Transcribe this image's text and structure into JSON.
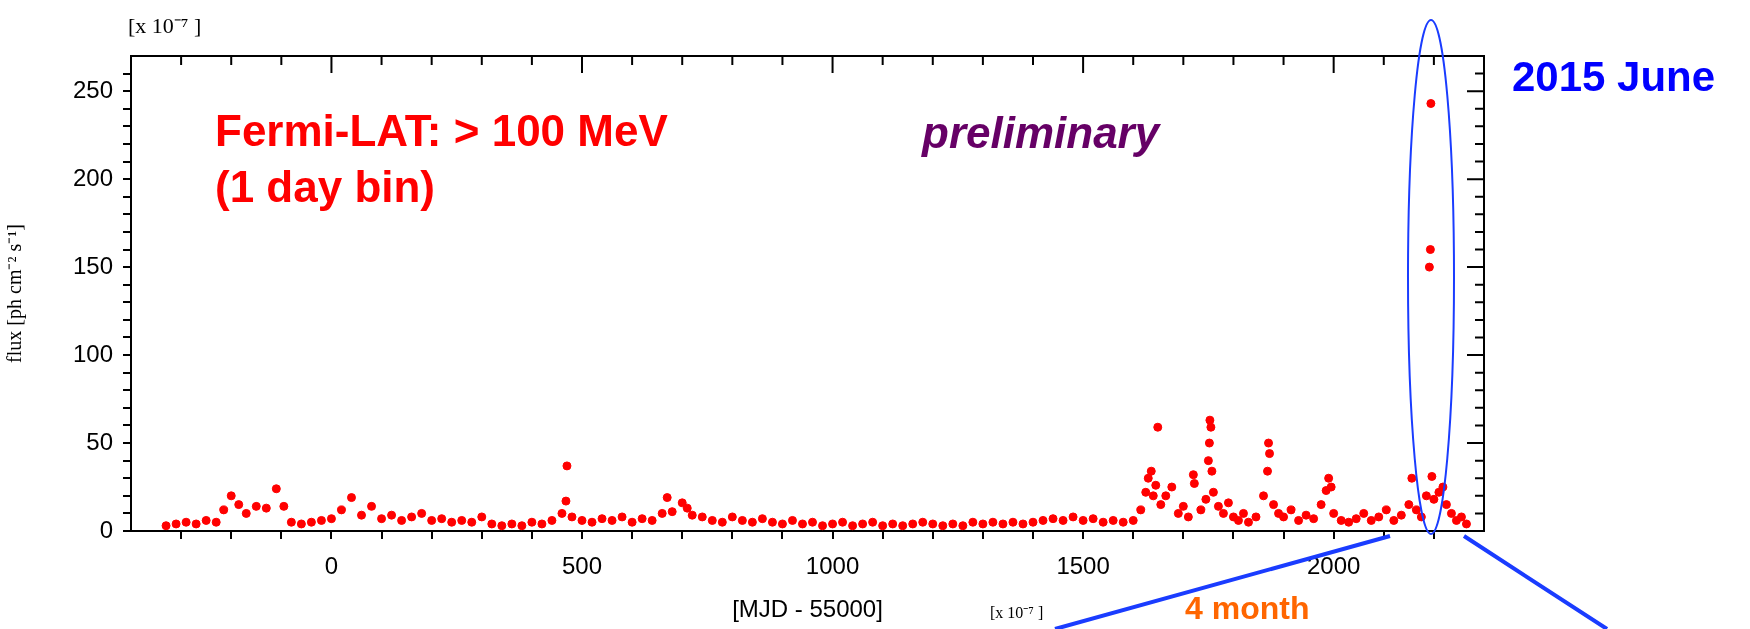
{
  "chart_data": {
    "type": "scatter",
    "xlabel": "[MJD - 55000]",
    "ylabel": "flux [ph cm⁻² s⁻¹]",
    "annotations": [
      "Fermi-LAT: > 100 MeV",
      "(1 day bin)",
      "preliminary",
      "2015 June",
      "[x 10⁻⁷ ]",
      "4 month",
      "[x 10⁻⁷ ]"
    ],
    "xlim": [
      -400,
      2300
    ],
    "ylim": [
      0,
      270
    ],
    "xticks": [
      {
        "value": -300,
        "label": null
      },
      {
        "value": -200,
        "label": null
      },
      {
        "value": -100,
        "label": null
      },
      0,
      {
        "value": 100,
        "label": null
      },
      {
        "value": 200,
        "label": null
      },
      {
        "value": 300,
        "label": null
      },
      {
        "value": 400,
        "label": null
      },
      500,
      {
        "value": 600,
        "label": null
      },
      {
        "value": 700,
        "label": null
      },
      {
        "value": 800,
        "label": null
      },
      {
        "value": 900,
        "label": null
      },
      1000,
      {
        "value": 1100,
        "label": null
      },
      {
        "value": 1200,
        "label": null
      },
      {
        "value": 1300,
        "label": null
      },
      {
        "value": 1400,
        "label": null
      },
      1500,
      {
        "value": 1600,
        "label": null
      },
      {
        "value": 1700,
        "label": null
      },
      {
        "value": 1800,
        "label": null
      },
      {
        "value": 1900,
        "label": null
      },
      2000,
      {
        "value": 2100,
        "label": null
      },
      {
        "value": 2200,
        "label": null
      }
    ],
    "yticks": [
      0,
      {
        "value": 10,
        "label": null
      },
      {
        "value": 20,
        "label": null
      },
      {
        "value": 30,
        "label": null
      },
      {
        "value": 40,
        "label": null
      },
      50,
      {
        "value": 60,
        "label": null
      },
      {
        "value": 70,
        "label": null
      },
      {
        "value": 80,
        "label": null
      },
      {
        "value": 90,
        "label": null
      },
      100,
      {
        "value": 110,
        "label": null
      },
      {
        "value": 120,
        "label": null
      },
      {
        "value": 130,
        "label": null
      },
      {
        "value": 140,
        "label": null
      },
      150,
      {
        "value": 160,
        "label": null
      },
      {
        "value": 170,
        "label": null
      },
      {
        "value": 180,
        "label": null
      },
      {
        "value": 190,
        "label": null
      },
      200,
      {
        "value": 210,
        "label": null
      },
      {
        "value": 220,
        "label": null
      },
      {
        "value": 230,
        "label": null
      },
      {
        "value": 240,
        "label": null
      },
      250,
      {
        "value": 260,
        "label": null
      }
    ],
    "grid": false,
    "legend": false,
    "marker": "circle",
    "series": [
      {
        "color": "#ff0000",
        "x": [
          -330,
          -310,
          -290,
          -270,
          -250,
          -230,
          -215,
          -200,
          -185,
          -170,
          -150,
          -130,
          -110,
          -95,
          -80,
          -60,
          -40,
          -20,
          0,
          20,
          40,
          60,
          80,
          100,
          120,
          140,
          160,
          180,
          200,
          220,
          240,
          260,
          280,
          300,
          320,
          340,
          360,
          380,
          400,
          420,
          440,
          460,
          468,
          470,
          480,
          500,
          520,
          540,
          560,
          580,
          600,
          620,
          640,
          660,
          670,
          680,
          700,
          710,
          720,
          740,
          760,
          780,
          800,
          820,
          840,
          860,
          880,
          900,
          920,
          940,
          960,
          980,
          1000,
          1020,
          1040,
          1060,
          1080,
          1100,
          1120,
          1140,
          1160,
          1180,
          1200,
          1220,
          1240,
          1260,
          1280,
          1300,
          1320,
          1340,
          1360,
          1380,
          1400,
          1420,
          1440,
          1460,
          1480,
          1500,
          1520,
          1540,
          1560,
          1580,
          1600,
          1615,
          1625,
          1630,
          1636,
          1640,
          1645,
          1649,
          1655,
          1665,
          1677,
          1690,
          1700,
          1710,
          1720,
          1722,
          1735,
          1745,
          1750,
          1752,
          1753,
          1755,
          1757,
          1760,
          1770,
          1780,
          1790,
          1800,
          1810,
          1820,
          1830,
          1845,
          1860,
          1868,
          1870,
          1872,
          1880,
          1890,
          1900,
          1915,
          1930,
          1945,
          1960,
          1975,
          1985,
          1990,
          1995,
          2000,
          2015,
          2030,
          2045,
          2060,
          2075,
          2090,
          2105,
          2120,
          2135,
          2150,
          2156,
          2165,
          2175,
          2185,
          2191,
          2193,
          2194,
          2196,
          2200,
          2210,
          2218,
          2225,
          2235,
          2245,
          2255,
          2265
        ],
        "values": [
          3,
          4,
          5,
          4,
          6,
          5,
          12,
          20,
          15,
          10,
          14,
          13,
          24,
          14,
          5,
          4,
          5,
          6,
          7,
          12,
          19,
          9,
          14,
          7,
          9,
          6,
          8,
          10,
          6,
          7,
          5,
          6,
          5,
          8,
          4,
          3,
          4,
          3,
          5,
          4,
          6,
          10,
          17,
          37,
          8,
          6,
          5,
          7,
          6,
          8,
          5,
          7,
          6,
          10,
          19,
          11,
          16,
          13,
          9,
          8,
          6,
          5,
          8,
          6,
          5,
          7,
          5,
          4,
          6,
          4,
          5,
          3,
          4,
          5,
          3,
          4,
          5,
          3,
          4,
          3,
          4,
          5,
          4,
          3,
          4,
          3,
          5,
          4,
          5,
          4,
          5,
          4,
          5,
          6,
          7,
          6,
          8,
          6,
          7,
          5,
          6,
          5,
          6,
          12,
          22,
          30,
          34,
          20,
          26,
          59,
          15,
          20,
          25,
          10,
          14,
          8,
          32,
          27,
          12,
          18,
          40,
          50,
          63,
          59,
          34,
          22,
          14,
          10,
          16,
          8,
          6,
          10,
          5,
          8,
          20,
          34,
          50,
          44,
          15,
          10,
          8,
          12,
          6,
          9,
          7,
          15,
          23,
          30,
          25,
          10,
          6,
          5,
          7,
          10,
          6,
          8,
          12,
          6,
          9,
          15,
          30,
          12,
          8,
          20,
          150,
          160,
          243,
          31,
          18,
          22,
          25,
          15,
          10,
          6,
          8,
          4
        ]
      }
    ]
  }
}
